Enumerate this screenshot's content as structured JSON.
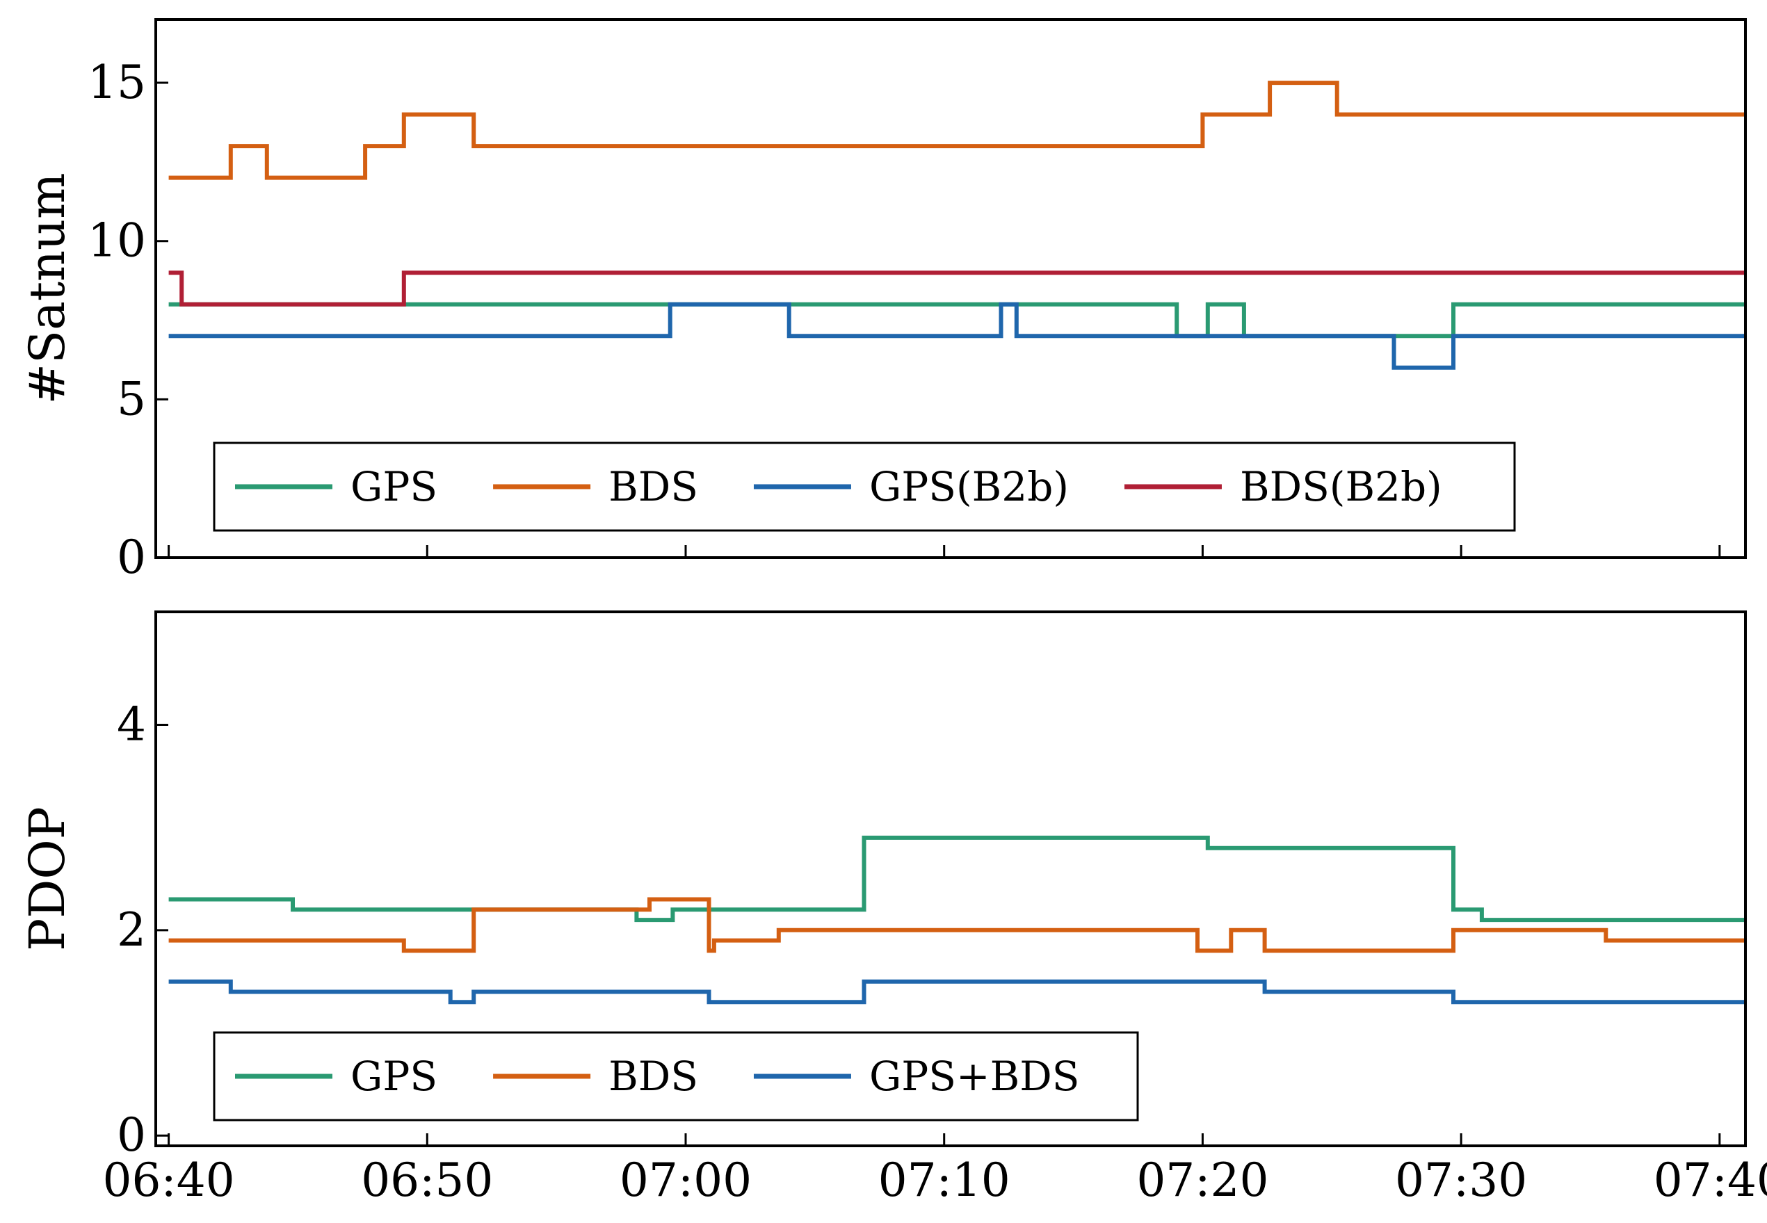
{
  "colors": {
    "gps": "#2a9a72",
    "bds": "#d45f12",
    "gps_b2b": "#1f66ac",
    "bds_b2b": "#b01f35",
    "gps_bds": "#1f66ac"
  },
  "chart_data": [
    {
      "type": "line",
      "step": true,
      "ylabel": "#Satnum",
      "ylim": [
        0,
        17
      ],
      "yticks": [
        0,
        5,
        10,
        15
      ],
      "xlim": [
        -0.5,
        61
      ],
      "xticks": [
        0,
        10,
        20,
        30,
        40,
        50,
        60
      ],
      "xtick_labels": [
        "06:40",
        "06:50",
        "07:00",
        "07:10",
        "07:20",
        "07:30",
        "07:40"
      ],
      "show_xtick_labels": false,
      "legend": {
        "placement": "lower-left",
        "columns": 4
      },
      "series": [
        {
          "name": "GPS",
          "color_key": "gps",
          "points": [
            [
              0,
              8
            ],
            [
              39,
              8
            ],
            [
              39,
              7
            ],
            [
              40.2,
              7
            ],
            [
              40.2,
              8
            ],
            [
              41.6,
              8
            ],
            [
              41.6,
              7
            ],
            [
              49.7,
              7
            ],
            [
              49.7,
              8
            ],
            [
              61,
              8
            ]
          ]
        },
        {
          "name": "BDS",
          "color_key": "bds",
          "points": [
            [
              0,
              12
            ],
            [
              2.4,
              12
            ],
            [
              2.4,
              13
            ],
            [
              3.8,
              13
            ],
            [
              3.8,
              12
            ],
            [
              7.6,
              12
            ],
            [
              7.6,
              13
            ],
            [
              9.1,
              13
            ],
            [
              9.1,
              14
            ],
            [
              11.8,
              14
            ],
            [
              11.8,
              13
            ],
            [
              40,
              13
            ],
            [
              40,
              14
            ],
            [
              42.6,
              14
            ],
            [
              42.6,
              15
            ],
            [
              45.2,
              15
            ],
            [
              45.2,
              14
            ],
            [
              61,
              14
            ]
          ]
        },
        {
          "name": "GPS(B2b)",
          "color_key": "gps_b2b",
          "points": [
            [
              0,
              7
            ],
            [
              19.4,
              7
            ],
            [
              19.4,
              8
            ],
            [
              24,
              8
            ],
            [
              24,
              7
            ],
            [
              32.2,
              7
            ],
            [
              32.2,
              8
            ],
            [
              32.8,
              8
            ],
            [
              32.8,
              7
            ],
            [
              47.4,
              7
            ],
            [
              47.4,
              6
            ],
            [
              49.7,
              6
            ],
            [
              49.7,
              7
            ],
            [
              61,
              7
            ]
          ]
        },
        {
          "name": "BDS(B2b)",
          "color_key": "bds_b2b",
          "points": [
            [
              0,
              9
            ],
            [
              0.5,
              9
            ],
            [
              0.5,
              8
            ],
            [
              9.1,
              8
            ],
            [
              9.1,
              9
            ],
            [
              61,
              9
            ]
          ]
        }
      ]
    },
    {
      "type": "line",
      "step": true,
      "ylabel": "PDOP",
      "ylim": [
        -0.1,
        5.1
      ],
      "yticks": [
        0,
        2,
        4
      ],
      "xlim": [
        -0.5,
        61
      ],
      "xticks": [
        0,
        10,
        20,
        30,
        40,
        50,
        60
      ],
      "xtick_labels": [
        "06:40",
        "06:50",
        "07:00",
        "07:10",
        "07:20",
        "07:30",
        "07:40"
      ],
      "show_xtick_labels": true,
      "legend": {
        "placement": "lower-left",
        "columns": 3
      },
      "series": [
        {
          "name": "GPS",
          "color_key": "gps",
          "points": [
            [
              0,
              2.3
            ],
            [
              4.8,
              2.3
            ],
            [
              4.8,
              2.2
            ],
            [
              18.1,
              2.2
            ],
            [
              18.1,
              2.1
            ],
            [
              19.5,
              2.1
            ],
            [
              19.5,
              2.2
            ],
            [
              26.9,
              2.2
            ],
            [
              26.9,
              2.9
            ],
            [
              40.2,
              2.9
            ],
            [
              40.2,
              2.8
            ],
            [
              49.7,
              2.8
            ],
            [
              49.7,
              2.2
            ],
            [
              50.8,
              2.2
            ],
            [
              50.8,
              2.1
            ],
            [
              61,
              2.1
            ]
          ]
        },
        {
          "name": "BDS",
          "color_key": "bds",
          "points": [
            [
              0,
              1.9
            ],
            [
              9.1,
              1.9
            ],
            [
              9.1,
              1.8
            ],
            [
              11.8,
              1.8
            ],
            [
              11.8,
              2.2
            ],
            [
              18.6,
              2.2
            ],
            [
              18.6,
              2.3
            ],
            [
              20.9,
              2.3
            ],
            [
              20.9,
              1.8
            ],
            [
              21.1,
              1.8
            ],
            [
              21.1,
              1.9
            ],
            [
              23.6,
              1.9
            ],
            [
              23.6,
              2.0
            ],
            [
              39.8,
              2.0
            ],
            [
              39.8,
              1.8
            ],
            [
              41.1,
              1.8
            ],
            [
              41.1,
              2.0
            ],
            [
              42.4,
              2.0
            ],
            [
              42.4,
              1.8
            ],
            [
              49.7,
              1.8
            ],
            [
              49.7,
              2.0
            ],
            [
              55.6,
              2.0
            ],
            [
              55.6,
              1.9
            ],
            [
              61,
              1.9
            ]
          ]
        },
        {
          "name": "GPS+BDS",
          "color_key": "gps_bds",
          "points": [
            [
              0,
              1.5
            ],
            [
              2.4,
              1.5
            ],
            [
              2.4,
              1.4
            ],
            [
              10.9,
              1.4
            ],
            [
              10.9,
              1.3
            ],
            [
              11.8,
              1.3
            ],
            [
              11.8,
              1.4
            ],
            [
              20.9,
              1.4
            ],
            [
              20.9,
              1.3
            ],
            [
              26.9,
              1.3
            ],
            [
              26.9,
              1.5
            ],
            [
              42.4,
              1.5
            ],
            [
              42.4,
              1.4
            ],
            [
              49.7,
              1.4
            ],
            [
              49.7,
              1.3
            ],
            [
              61,
              1.3
            ]
          ]
        }
      ]
    }
  ]
}
